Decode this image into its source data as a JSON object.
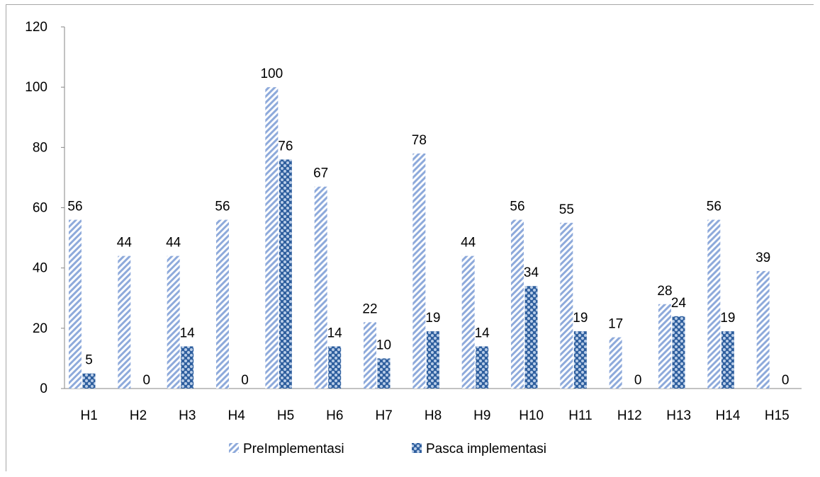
{
  "chart_data": {
    "type": "bar",
    "title": "",
    "xlabel": "",
    "ylabel": "",
    "categories": [
      "H1",
      "H2",
      "H3",
      "H4",
      "H5",
      "H6",
      "H7",
      "H8",
      "H9",
      "H10",
      "H11",
      "H12",
      "H13",
      "H14",
      "H15"
    ],
    "series": [
      {
        "name": "PreImplementasi",
        "values": [
          56,
          44,
          44,
          56,
          100,
          67,
          22,
          78,
          44,
          56,
          55,
          17,
          28,
          56,
          39
        ],
        "color": "#8eaadb",
        "pattern": "diagonal-stripes"
      },
      {
        "name": "Pasca implementasi",
        "values": [
          5,
          0,
          14,
          0,
          76,
          14,
          10,
          19,
          14,
          34,
          19,
          0,
          24,
          19,
          0
        ],
        "color": "#4f81bd",
        "pattern": "checker-dots"
      }
    ],
    "ylim": [
      0,
      120
    ],
    "yticks": [
      0,
      20,
      40,
      60,
      80,
      100,
      120
    ],
    "grid": false,
    "legend_position": "bottom",
    "data_labels": true
  }
}
